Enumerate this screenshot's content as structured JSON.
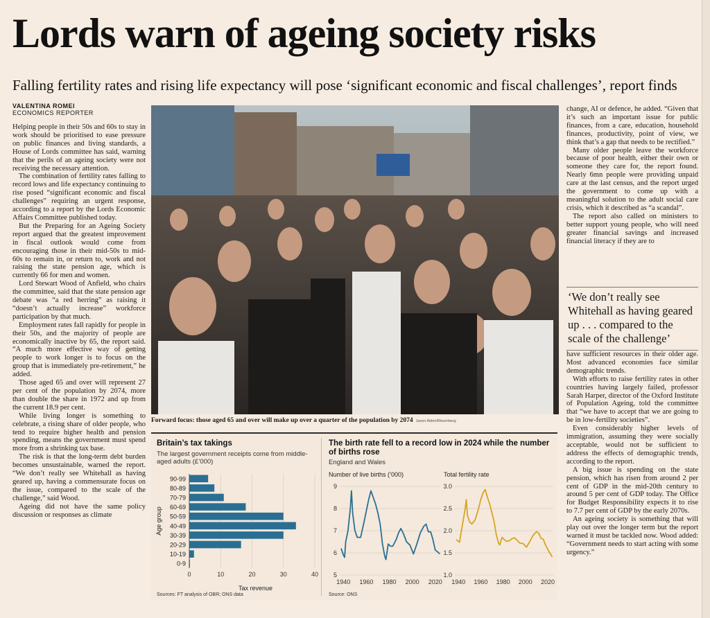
{
  "headline": "Lords warn of ageing society risks",
  "standfirst": "Falling fertility rates and rising life expectancy will pose ‘significant economic and fiscal challenges’, report finds",
  "byline": {
    "name": "VALENTINA ROMEI",
    "role": "ECONOMICS REPORTER"
  },
  "column1": [
    "Helping people in their 50s and 60s to stay in work should be prioritised to ease pressure on public finances and living standards, a House of Lords committee has said, warning that the perils of an ageing society were not receiving the necessary attention.",
    "The combination of fertility rates falling to record lows and life expectancy continuing to rise posed “significant economic and fiscal challenges” requiring an urgent response, according to a report by the Lords Economic Affairs Committee published today.",
    "But the Preparing for an Ageing Society report argued that the greatest improvement in fiscal outlook would come from encouraging those in their mid-50s to mid-60s to remain in, or return to, work and not raising the state pension age, which is currently 66 for men and women.",
    "Lord Stewart Wood of Anfield, who chairs the committee, said that the state pension age debate was “a red herring” as raising it “doesn’t actually increase” workforce participation by that much.",
    "Employment rates fall rapidly for people in their 50s, and the majority of people are economically inactive by 65, the report said. “A much more effective way of getting people to work longer is to focus on the group that is immediately pre-retirement,” he added.",
    "Those aged 65 and over will represent 27 per cent of the population by 2074, more than double the share in 1972 and up from the current 18.9 per cent.",
    "While living longer is something to celebrate, a rising share of older people, who tend to require higher health and pension spending, means the government must spend more from a shrinking tax base.",
    "The risk is that the long-term debt burden becomes unsustainable, warned the report. “We don’t really see Whitehall as having geared up, having a commensurate focus on the issue, compared to the scale of the challenge,” said Wood.",
    "Ageing did not have the same policy discussion or responses as climate"
  ],
  "column3a": [
    "change, AI or defence, he added. “Given that it’s such an important issue for public finances, from a care, education, household finances, productivity, point of view, we think that’s a gap that needs to be rectified.”",
    "Many older people leave the workforce because of poor health, either their own or someone they care for, the report found. Nearly 6mn people were providing unpaid care at the last census, and the report urged the government to come up with a meaningful solution to the adult social care crisis, which it described as “a scandal”.",
    "The report also called on ministers to better support young people, who will need greater financial savings and increased financial literacy if they are to"
  ],
  "pullquote": "‘We don’t really see Whitehall as having geared up . . . compared to the scale of the challenge’",
  "column3b": [
    "have sufficient resources in their older age. Most advanced economies face similar demographic trends.",
    "With efforts to raise fertility rates in other countries having largely failed, professor Sarah Harper, director of the Oxford Institute of Population Ageing, told the committee that “we have to accept that we are going to be in low-fertility societies”.",
    "Even considerably higher levels of immigration, assuming they were socially acceptable, would not be sufficient to address the effects of demographic trends, according to the report.",
    "A big issue is spending on the state pension, which has risen from around 2 per cent of GDP in the mid-20th century to around 5 per cent of GDP today. The Office for Budget Responsibility expects it to rise to 7.7 per cent of GDP by the early 2070s.",
    "An ageing society is something that will play out over the longer term but the report warned it must be tackled now. Wood added: “Government needs to start acting with some urgency.”"
  ],
  "photo": {
    "caption": "Forward focus: those aged 65 and over will make up over a quarter of the population by 2074",
    "credit": "Jason Alden/Bloomberg"
  },
  "colors": {
    "bar": "#2a6f93",
    "births": "#2a6f93",
    "tfr": "#d9a323",
    "paper": "#f6ece1"
  },
  "chart_data": [
    {
      "type": "bar",
      "orientation": "horizontal",
      "title": "Britain’s tax takings",
      "subtitle": "The largest government receipts come from middle-aged adults (£’000)",
      "ylabel": "Age group",
      "xlabel": "Tax revenue",
      "categories": [
        "90-99",
        "80-89",
        "70-79",
        "60-69",
        "50-59",
        "40-49",
        "30-39",
        "20-29",
        "10-19",
        "0-9"
      ],
      "values": [
        6,
        8,
        11,
        18,
        30,
        34,
        30,
        16.5,
        1.5,
        0.2
      ],
      "xlim": [
        0,
        40
      ],
      "xticks": [
        "0",
        "10",
        "20",
        "30",
        "40"
      ],
      "source": "Sources: FT analysis of OBR; ONS data"
    },
    {
      "type": "line",
      "title": "The birth rate fell to a record low in 2024 while the number of births rose",
      "subtitle": "England and Wales",
      "source": "Source: ONS",
      "panels": [
        {
          "label": "Number of live births (’000)",
          "xlim": [
            1938,
            2025
          ],
          "ylim": [
            5,
            9
          ],
          "xticks": [
            "1940",
            "1960",
            "1980",
            "2000",
            "2020"
          ],
          "yticks": [
            "5",
            "6",
            "7",
            "8",
            "9"
          ],
          "x": [
            1938,
            1940,
            1941,
            1942,
            1944,
            1946,
            1947,
            1948,
            1950,
            1952,
            1955,
            1958,
            1960,
            1962,
            1964,
            1966,
            1968,
            1970,
            1972,
            1974,
            1976,
            1977,
            1979,
            1981,
            1983,
            1986,
            1988,
            1990,
            1992,
            1995,
            1998,
            2001,
            2004,
            2007,
            2010,
            2012,
            2014,
            2016,
            2018,
            2020,
            2022,
            2024
          ],
          "y": [
            6.2,
            5.9,
            5.8,
            6.5,
            7.0,
            8.0,
            8.8,
            7.8,
            7.0,
            6.7,
            6.7,
            7.4,
            7.9,
            8.4,
            8.8,
            8.5,
            8.2,
            7.8,
            7.3,
            6.4,
            5.85,
            5.7,
            6.4,
            6.3,
            6.3,
            6.6,
            6.9,
            7.1,
            6.9,
            6.5,
            6.35,
            5.95,
            6.4,
            6.9,
            7.2,
            7.3,
            6.95,
            6.95,
            6.6,
            6.13,
            6.05,
            5.95
          ]
        },
        {
          "label": "Total fertility rate",
          "xlim": [
            1938,
            2025
          ],
          "ylim": [
            1.0,
            3.0
          ],
          "xticks": [
            "1940",
            "1960",
            "1980",
            "2000",
            "2020"
          ],
          "yticks": [
            "1.0",
            "1.5",
            "2.0",
            "2.5",
            "3.0"
          ],
          "x": [
            1938,
            1940,
            1941,
            1942,
            1944,
            1946,
            1947,
            1948,
            1950,
            1952,
            1955,
            1958,
            1960,
            1962,
            1964,
            1966,
            1968,
            1970,
            1972,
            1974,
            1976,
            1977,
            1979,
            1981,
            1983,
            1986,
            1988,
            1990,
            1992,
            1995,
            1998,
            2001,
            2004,
            2007,
            2010,
            2012,
            2014,
            2016,
            2018,
            2020,
            2022,
            2024
          ],
          "y": [
            1.8,
            1.76,
            1.74,
            1.9,
            2.2,
            2.5,
            2.7,
            2.35,
            2.2,
            2.15,
            2.25,
            2.5,
            2.7,
            2.85,
            2.93,
            2.75,
            2.6,
            2.4,
            2.2,
            1.9,
            1.72,
            1.68,
            1.85,
            1.8,
            1.76,
            1.78,
            1.82,
            1.84,
            1.8,
            1.72,
            1.71,
            1.63,
            1.76,
            1.9,
            1.98,
            1.94,
            1.83,
            1.81,
            1.68,
            1.58,
            1.49,
            1.41
          ]
        }
      ]
    }
  ]
}
